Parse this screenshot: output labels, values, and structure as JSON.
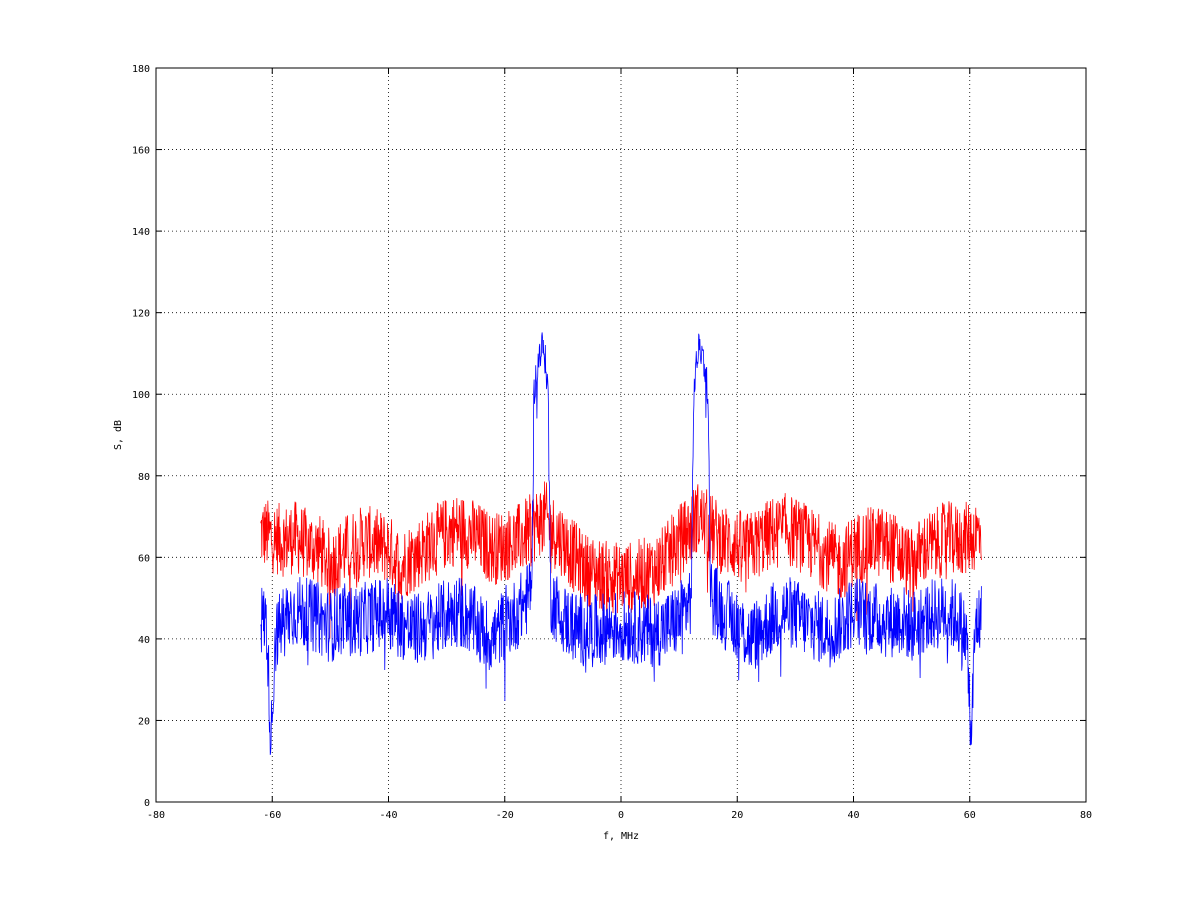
{
  "chart_data": {
    "type": "line",
    "title": "",
    "xlabel": "f, MHz",
    "ylabel": "S, dB",
    "xlim": [
      -80,
      80
    ],
    "ylim": [
      0,
      180
    ],
    "xticks": [
      "-80",
      "-60",
      "-40",
      "-20",
      "0",
      "20",
      "40",
      "60",
      "80"
    ],
    "yticks": [
      "0",
      "20",
      "40",
      "60",
      "80",
      "100",
      "120",
      "140",
      "160",
      "180"
    ],
    "grid": true,
    "legend": "none",
    "series": [
      {
        "color": "#ff0000",
        "x": [
          -62,
          -60,
          -58,
          -56,
          -54,
          -52,
          -50,
          -48,
          -46,
          -44,
          -42,
          -40,
          -38,
          -36,
          -34,
          -32,
          -30,
          -28,
          -26,
          -24,
          -22,
          -20,
          -18,
          -16,
          -14,
          -13,
          -12,
          -10,
          -8,
          -6,
          -4,
          -2,
          0,
          2,
          4,
          6,
          8,
          10,
          12,
          13,
          14,
          16,
          18,
          20,
          22,
          24,
          26,
          28,
          30,
          32,
          34,
          36,
          38,
          40,
          42,
          44,
          46,
          48,
          50,
          52,
          54,
          56,
          58,
          60,
          62
        ],
        "y": [
          66,
          65,
          64,
          65,
          63,
          62,
          58,
          61,
          63,
          64,
          63,
          62,
          58,
          60,
          62,
          64,
          66,
          67,
          66,
          64,
          62,
          63,
          64,
          66,
          69,
          70,
          67,
          64,
          60,
          57,
          56,
          55,
          55,
          55,
          56,
          57,
          60,
          64,
          67,
          70,
          69,
          66,
          64,
          63,
          62,
          64,
          66,
          67,
          66,
          64,
          62,
          60,
          58,
          62,
          63,
          64,
          63,
          61,
          58,
          62,
          63,
          65,
          64,
          65,
          66
        ]
      },
      {
        "color": "#0000ff",
        "x": [
          -62,
          -61,
          -60.2,
          -59.5,
          -58,
          -56,
          -54,
          -52,
          -50,
          -48,
          -46,
          -44,
          -42,
          -40,
          -38,
          -36,
          -34,
          -32,
          -30,
          -28,
          -26,
          -24,
          -22,
          -20,
          -18,
          -16,
          -15.3,
          -15,
          -14.5,
          -14,
          -13.5,
          -13,
          -12.5,
          -12.2,
          -12,
          -10,
          -8,
          -6,
          -4,
          -2,
          0,
          2,
          4,
          6,
          8,
          10,
          12,
          12.2,
          12.5,
          13,
          13.5,
          14,
          14.5,
          15,
          15.3,
          16,
          18,
          20,
          22,
          24,
          26,
          28,
          30,
          32,
          34,
          36,
          38,
          40,
          42,
          44,
          46,
          48,
          50,
          52,
          54,
          56,
          58,
          59.5,
          60.2,
          61,
          62
        ],
        "y": [
          45,
          44,
          15,
          40,
          45,
          47,
          46,
          45,
          43,
          45,
          44,
          45,
          46,
          47,
          44,
          42,
          43,
          44,
          46,
          47,
          45,
          42,
          40,
          44,
          46,
          50,
          56,
          100,
          106,
          110,
          112,
          108,
          100,
          56,
          50,
          45,
          43,
          42,
          42,
          43,
          43,
          43,
          42,
          42,
          43,
          45,
          50,
          56,
          100,
          108,
          112,
          110,
          106,
          100,
          56,
          50,
          46,
          44,
          40,
          42,
          45,
          47,
          46,
          44,
          43,
          42,
          44,
          47,
          46,
          45,
          44,
          45,
          43,
          45,
          46,
          47,
          45,
          40,
          15,
          44,
          45
        ]
      }
    ]
  }
}
